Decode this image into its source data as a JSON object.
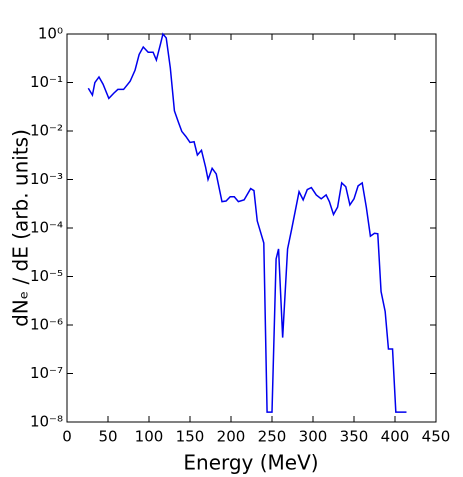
{
  "chart_data": {
    "type": "line",
    "xlabel": "Energy (MeV)",
    "ylabel": "dNₑ / dE (arb. units)",
    "color": "#0000ee",
    "log_y": true,
    "xlim": [
      0,
      450
    ],
    "xticks": [
      0,
      50,
      100,
      150,
      200,
      250,
      300,
      350,
      400,
      450
    ],
    "ylim": [
      1e-08,
      1
    ],
    "yticks": [
      {
        "value": 1,
        "label": "10⁰"
      },
      {
        "value": 0.1,
        "label": "10⁻¹"
      },
      {
        "value": 0.01,
        "label": "10⁻²"
      },
      {
        "value": 0.001,
        "label": "10⁻³"
      },
      {
        "value": 0.0001,
        "label": "10⁻⁴"
      },
      {
        "value": 1e-05,
        "label": "10⁻⁵"
      },
      {
        "value": 1e-06,
        "label": "10⁻⁶"
      },
      {
        "value": 1e-07,
        "label": "10⁻⁷"
      },
      {
        "value": 1e-08,
        "label": "10⁻⁸"
      }
    ],
    "x": [
      26,
      31,
      34,
      39,
      44,
      51,
      57,
      62,
      69,
      77,
      83,
      88,
      93,
      99,
      105,
      109,
      114,
      117,
      121,
      126,
      131,
      136,
      140,
      145,
      150,
      155,
      159,
      164,
      169,
      172,
      177,
      182,
      189,
      194,
      199,
      204,
      209,
      216,
      224,
      228,
      232,
      240,
      244,
      250,
      255,
      258,
      263,
      269,
      274,
      283,
      288,
      293,
      298,
      304,
      310,
      316,
      320,
      325,
      330,
      335,
      340,
      345,
      350,
      355,
      360,
      365,
      370,
      375,
      379,
      383,
      388,
      392,
      397,
      401,
      414
    ],
    "values": [
      0.076,
      0.055,
      0.1,
      0.13,
      0.092,
      0.047,
      0.06,
      0.072,
      0.072,
      0.106,
      0.18,
      0.38,
      0.54,
      0.42,
      0.42,
      0.29,
      0.62,
      1.0,
      0.83,
      0.2,
      0.026,
      0.015,
      0.0098,
      0.0077,
      0.0058,
      0.006,
      0.0032,
      0.004,
      0.0018,
      0.001,
      0.0017,
      0.0013,
      0.00035,
      0.00036,
      0.00044,
      0.00044,
      0.00035,
      0.00038,
      0.00065,
      0.00059,
      0.00014,
      4.9e-05,
      1.6e-08,
      1.6e-08,
      2.3e-05,
      3.7e-05,
      5.5e-07,
      3.7e-05,
      9.5e-05,
      0.00056,
      0.00038,
      0.00062,
      0.00068,
      0.00048,
      0.0004,
      0.00048,
      0.00035,
      0.00019,
      0.00027,
      0.00085,
      0.00071,
      0.0003,
      0.0004,
      0.00074,
      0.00085,
      0.00027,
      6.8e-05,
      7.8e-05,
      7.6e-05,
      4.9e-06,
      1.9e-06,
      3.2e-07,
      3.2e-07,
      1.6e-08,
      1.6e-08
    ]
  }
}
